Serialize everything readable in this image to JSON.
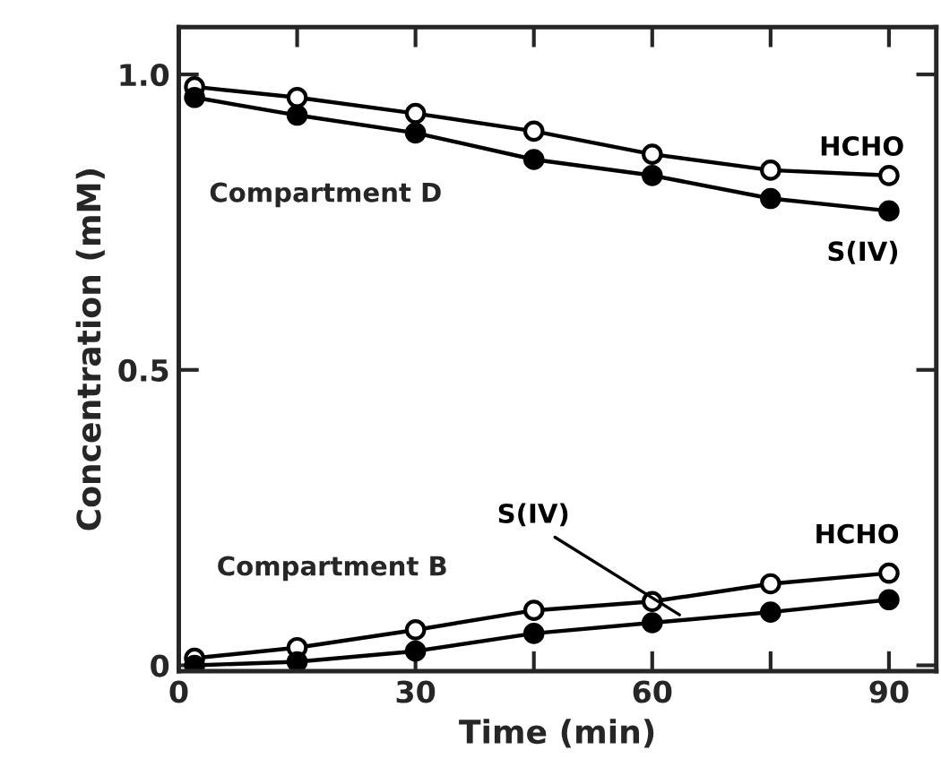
{
  "chart_data": {
    "type": "line",
    "xlabel": "Time (min)",
    "ylabel": "Concentration (mM)",
    "x": [
      2,
      15,
      30,
      45,
      60,
      75,
      90
    ],
    "series": [
      {
        "name": "HCHO",
        "color": "#000000",
        "values": [
          0.979,
          0.961,
          0.934,
          0.904,
          0.865,
          0.838,
          0.829
        ]
      },
      {
        "name": "S(IV)",
        "color": "#000000",
        "values": [
          0.961,
          0.931,
          0.901,
          0.856,
          0.829,
          0.79,
          0.769
        ]
      },
      {
        "name": "HCHO",
        "color": "#000000",
        "values": [
          0.012,
          0.03,
          0.06,
          0.093,
          0.108,
          0.138,
          0.156
        ]
      },
      {
        "name": "S(IV)",
        "color": "#000000",
        "values": [
          0.0,
          0.006,
          0.024,
          0.054,
          0.072,
          0.09,
          0.111
        ]
      }
    ],
    "annotations": [
      "Compartment D",
      "Compartment B"
    ],
    "xlim": [
      0,
      96
    ],
    "ylim": [
      -0.01,
      1.08
    ],
    "xticks": [
      0,
      {
        "value": 15,
        "label": null
      },
      30,
      {
        "value": 45,
        "label": null
      },
      60,
      {
        "value": 75,
        "label": null
      },
      90
    ],
    "yticks": [
      0,
      0.5,
      {
        "value": 1.0,
        "label": "1.0"
      }
    ],
    "marker": "circle",
    "line_style": "solid",
    "grid": false,
    "legend": false
  }
}
